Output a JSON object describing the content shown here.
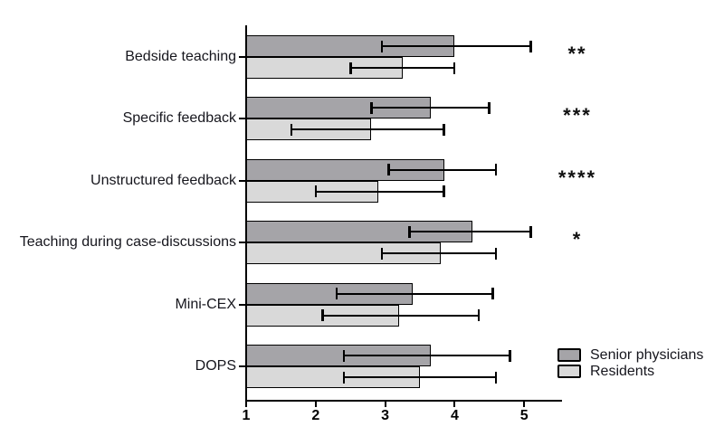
{
  "chart_data": {
    "type": "bar",
    "orientation": "horizontal",
    "title": "",
    "xlabel": "",
    "ylabel": "",
    "grid": false,
    "categories": [
      "Bedside teaching",
      "Specific feedback",
      "Unstructured feedback",
      "Teaching during case-discussions",
      "Mini-CEX",
      "DOPS"
    ],
    "series": [
      {
        "name": "Senior physicians",
        "color": "#a5a4a8",
        "values": [
          4.0,
          3.65,
          3.85,
          4.25,
          3.4,
          3.65
        ],
        "err_low": [
          2.95,
          2.8,
          3.05,
          3.35,
          2.3,
          2.4
        ],
        "err_high": [
          5.1,
          4.5,
          4.6,
          5.1,
          4.55,
          4.8
        ]
      },
      {
        "name": "Residents",
        "color": "#d9d9d9",
        "values": [
          3.25,
          2.8,
          2.9,
          3.8,
          3.2,
          3.5
        ],
        "err_low": [
          2.5,
          1.65,
          2.0,
          2.95,
          2.1,
          2.4
        ],
        "err_high": [
          4.0,
          3.85,
          3.85,
          4.6,
          4.35,
          4.6
        ]
      }
    ],
    "significance": [
      "**",
      "***",
      "****",
      "*",
      "",
      ""
    ],
    "xaxis": {
      "min": 1,
      "max": 5.55,
      "ticks": [
        1,
        2,
        3,
        4,
        5
      ],
      "tick_labels": [
        "1",
        "2",
        "3",
        "4",
        "5"
      ]
    },
    "legend": {
      "position": "bottom-right",
      "entries": [
        "Senior physicians",
        "Residents"
      ]
    },
    "colors": {
      "axis": "#000000",
      "error_bar": "#000000",
      "background": "#ffffff"
    }
  }
}
